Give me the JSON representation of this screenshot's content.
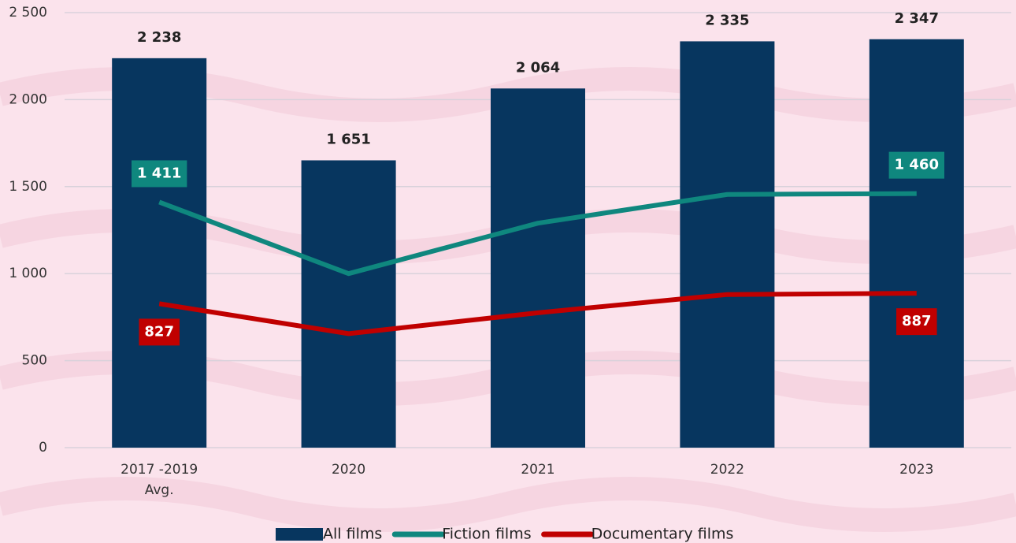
{
  "chart_data": {
    "type": "bar",
    "categories": [
      "2017 -2019\nAvg.",
      "2020",
      "2021",
      "2022",
      "2023"
    ],
    "series": [
      {
        "name": "All films",
        "type": "bar",
        "color": "#07365f",
        "values": [
          2238,
          1651,
          2064,
          2335,
          2347
        ],
        "value_labels": [
          "2 238",
          "1 651",
          "2 064",
          "2 335",
          "2 347"
        ]
      },
      {
        "name": "Fiction films",
        "type": "line",
        "color": "#0f877e",
        "values": [
          1411,
          1000,
          1290,
          1455,
          1460
        ],
        "value_labels": [
          "1 411",
          null,
          null,
          null,
          "1 460"
        ]
      },
      {
        "name": "Documentary films",
        "type": "line",
        "color": "#c00000",
        "values": [
          827,
          655,
          775,
          880,
          887
        ],
        "value_labels": [
          "827",
          null,
          null,
          null,
          "887"
        ]
      }
    ],
    "ylim": [
      0,
      2500
    ],
    "yticks": [
      0,
      500,
      {
        "value": 1000,
        "label": "1 000"
      },
      {
        "value": 1500,
        "label": "1 500"
      },
      {
        "value": 2000,
        "label": "2 000"
      },
      {
        "value": 2500,
        "label": "2 500"
      }
    ],
    "grid": true,
    "legend": "bottom"
  }
}
